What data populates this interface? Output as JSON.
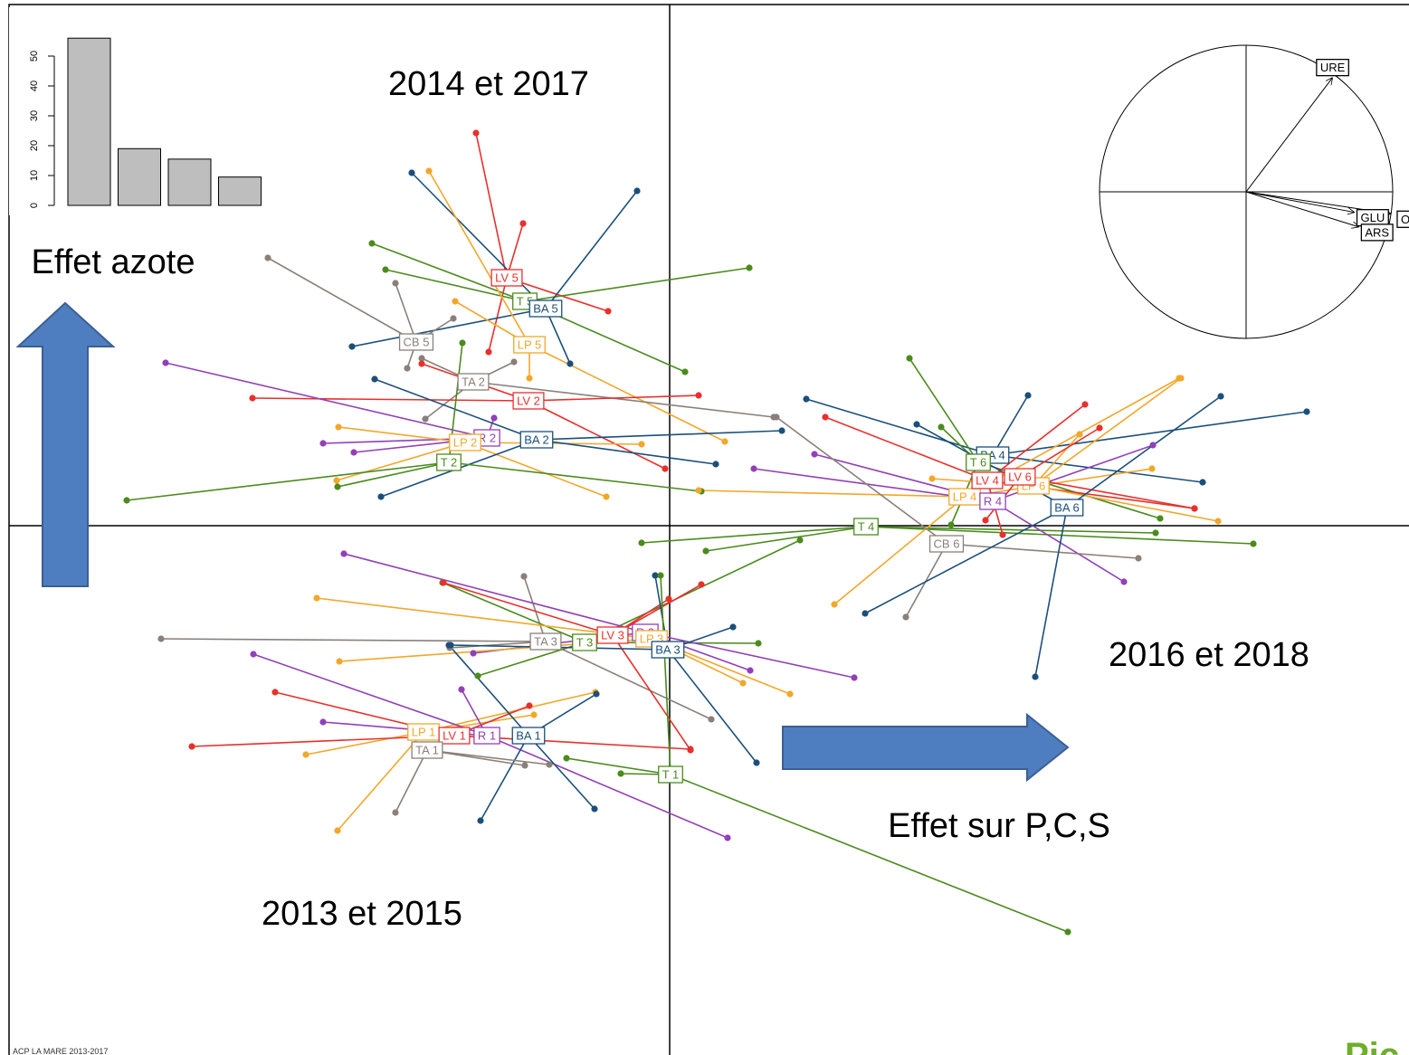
{
  "chart_data": [
    {
      "type": "bar",
      "categories": [
        null,
        null,
        null,
        null
      ],
      "values": [
        56,
        19,
        15.5,
        9.5
      ],
      "color": "#bebebe",
      "ylim": [
        0,
        56
      ],
      "yticks": [
        0,
        10,
        20,
        30,
        40,
        50
      ]
    },
    {
      "type": "class-scatter",
      "xlim": [
        -730,
        817
      ],
      "ylim": [
        -585,
        576
      ],
      "groups": [
        {
          "name": "LV 5",
          "color": "#e8302c",
          "center": [
            -180,
            274
          ],
          "x": [
            -214,
            -162,
            -68,
            -200
          ],
          "y": [
            434,
            334,
            237,
            192
          ]
        },
        {
          "name": "T 5",
          "color": "#4b8b1d",
          "center": [
            -160,
            248
          ],
          "x": [
            -329,
            88,
            17,
            -314
          ],
          "y": [
            312,
            285,
            170,
            283
          ]
        },
        {
          "name": "BA 5",
          "color": "#1b4f7a",
          "center": [
            -137,
            240
          ],
          "x": [
            -285,
            -36,
            -110,
            -351
          ],
          "y": [
            390,
            370,
            179,
            198
          ]
        },
        {
          "name": "LP 5",
          "color": "#f2a72a",
          "center": [
            -155,
            200
          ],
          "x": [
            -266,
            -237,
            -155,
            61
          ],
          "y": [
            392,
            248,
            163,
            93
          ]
        },
        {
          "name": "CB 5",
          "color": "#8a8079",
          "center": [
            -280,
            203
          ],
          "x": [
            -444,
            -303,
            -290,
            -239
          ],
          "y": [
            296,
            268,
            174,
            229
          ]
        },
        {
          "name": "TA 2",
          "color": "#8a8079",
          "center": [
            -217,
            159
          ],
          "x": [
            -274,
            -172,
            115,
            -270
          ],
          "y": [
            185,
            181,
            120,
            118
          ]
        },
        {
          "name": "LV 2",
          "color": "#e8302c",
          "center": [
            -156,
            138
          ],
          "x": [
            -461,
            32,
            -274,
            -5
          ],
          "y": [
            141,
            144,
            179,
            63
          ]
        },
        {
          "name": "R 2",
          "color": "#9240b8",
          "center": [
            -202,
            97
          ],
          "x": [
            -557,
            -383,
            -349,
            -194
          ],
          "y": [
            180,
            91,
            81,
            119
          ]
        },
        {
          "name": "LP 2",
          "color": "#f2a72a",
          "center": [
            -226,
            92
          ],
          "x": [
            -366,
            -368,
            -31,
            -70
          ],
          "y": [
            109,
            50,
            90,
            32
          ]
        },
        {
          "name": "BA 2",
          "color": "#1b4f7a",
          "center": [
            -147,
            95
          ],
          "x": [
            -326,
            -319,
            124,
            51
          ],
          "y": [
            162,
            32,
            105,
            68
          ]
        },
        {
          "name": "T 2",
          "color": "#4b8b1d",
          "center": [
            -244,
            70
          ],
          "x": [
            -600,
            -367,
            -229,
            35
          ],
          "y": [
            28,
            43,
            202,
            38
          ]
        },
        {
          "name": "TA 3",
          "color": "#8a8079",
          "center": [
            -137,
            -128
          ],
          "x": [
            -562,
            -161,
            46,
            -243
          ],
          "y": [
            -125,
            -56,
            -214,
            -135
          ]
        },
        {
          "name": "T 3",
          "color": "#4b8b1d",
          "center": [
            -94,
            -129
          ],
          "x": [
            -251,
            -212,
            144,
            98
          ],
          "y": [
            -63,
            -166,
            -16,
            -130
          ]
        },
        {
          "name": "LV 3",
          "color": "#e8302c",
          "center": [
            -63,
            -121
          ],
          "x": [
            -250,
            35,
            -1,
            23
          ],
          "y": [
            -63,
            -65,
            -81,
            -248
          ]
        },
        {
          "name": "R 3",
          "color": "#9240b8",
          "center": [
            -27,
            -118
          ],
          "x": [
            -360,
            204,
            89,
            -217
          ],
          "y": [
            -31,
            -168,
            -160,
            -141
          ]
        },
        {
          "name": "LP 3",
          "color": "#f2a72a",
          "center": [
            -20,
            -125
          ],
          "x": [
            -390,
            -365,
            133,
            81
          ],
          "y": [
            -80,
            -150,
            -186,
            -174
          ]
        },
        {
          "name": "BA 3",
          "color": "#1b4f7a",
          "center": [
            -2,
            -137
          ],
          "x": [
            -16,
            70,
            -242,
            96
          ],
          "y": [
            -55,
            -112,
            -132,
            -262
          ]
        },
        {
          "name": "LP 1",
          "color": "#f2a72a",
          "center": [
            -272,
            -228
          ],
          "x": [
            -402,
            -367,
            -82,
            -150
          ],
          "y": [
            -253,
            -337,
            -184,
            -209
          ]
        },
        {
          "name": "LV 1",
          "color": "#e8302c",
          "center": [
            -238,
            -232
          ],
          "x": [
            -528,
            -436,
            23,
            -155
          ],
          "y": [
            -244,
            -184,
            -247,
            -199
          ]
        },
        {
          "name": "R 1",
          "color": "#9240b8",
          "center": [
            -202,
            -232
          ],
          "x": [
            -460,
            -383,
            64,
            -230
          ],
          "y": [
            -142,
            -217,
            -345,
            -181
          ]
        },
        {
          "name": "BA 1",
          "color": "#1b4f7a",
          "center": [
            -156,
            -232
          ],
          "x": [
            -209,
            -83,
            -81,
            -244
          ],
          "y": [
            -326,
            -313,
            -186,
            -132
          ]
        },
        {
          "name": "TA 1",
          "color": "#8a8079",
          "center": [
            -268,
            -248
          ],
          "x": [
            -303,
            -160,
            -133
          ],
          "y": [
            -317,
            -265,
            -264
          ]
        },
        {
          "name": "T 1",
          "color": "#4b8b1d",
          "center": [
            1,
            -275
          ],
          "x": [
            440,
            -54,
            -114,
            -10
          ],
          "y": [
            -449,
            -274,
            -257,
            -55
          ]
        },
        {
          "name": "T 4",
          "color": "#4b8b1d",
          "center": [
            217,
            -1
          ],
          "x": [
            -31,
            40,
            645,
            537
          ],
          "y": [
            -19,
            -28,
            -20,
            -8
          ]
        },
        {
          "name": "BA 4",
          "color": "#1b4f7a",
          "center": [
            357,
            78
          ],
          "x": [
            151,
            396,
            589,
            704
          ],
          "y": [
            140,
            144,
            48,
            126
          ]
        },
        {
          "name": "LP 4",
          "color": "#f2a72a",
          "center": [
            326,
            32
          ],
          "x": [
            182,
            32,
            563,
            533
          ],
          "y": [
            -87,
            39,
            163,
            63
          ]
        },
        {
          "name": "R 4",
          "color": "#9240b8",
          "center": [
            357,
            27
          ],
          "x": [
            160,
            502,
            93,
            534
          ],
          "y": [
            79,
            -62,
            63,
            89
          ]
        },
        {
          "name": "CB 6",
          "color": "#8a8079",
          "center": [
            306,
            -20
          ],
          "x": [
            261,
            118,
            518
          ],
          "y": [
            -101,
            120,
            -36
          ]
        },
        {
          "name": "T 6",
          "color": "#4b8b1d",
          "center": [
            341,
            70
          ],
          "x": [
            265,
            300,
            311,
            542
          ],
          "y": [
            185,
            109,
            1,
            8
          ]
        },
        {
          "name": "LV 4",
          "color": "#e8302c",
          "center": [
            351,
            50
          ],
          "x": [
            172,
            459,
            580,
            368
          ],
          "y": [
            120,
            134,
            19,
            -10
          ]
        },
        {
          "name": "LP 6",
          "color": "#f2a72a",
          "center": [
            402,
            44
          ],
          "x": [
            565,
            453,
            606,
            290
          ],
          "y": [
            163,
            101,
            5,
            52
          ]
        },
        {
          "name": "LV 6",
          "color": "#e8302c",
          "center": [
            387,
            54
          ],
          "x": [
            349,
            475,
            580
          ],
          "y": [
            6,
            108,
            19
          ]
        },
        {
          "name": "BA 6",
          "color": "#1b4f7a",
          "center": [
            439,
            20
          ],
          "x": [
            609,
            404,
            216,
            273
          ],
          "y": [
            143,
            -167,
            -97,
            112
          ]
        }
      ]
    },
    {
      "type": "correlation-circle",
      "xlim": [
        -1,
        1
      ],
      "ylim": [
        -1,
        1
      ],
      "arrows": [
        {
          "name": "URE",
          "x": 0.59,
          "y": 0.78
        },
        {
          "name": "OS",
          "x": 0.99,
          "y": -0.15
        },
        {
          "name": "GLU",
          "x": 0.74,
          "y": -0.14
        },
        {
          "name": "ARS",
          "x": 0.77,
          "y": -0.24
        }
      ]
    }
  ],
  "annotations": [
    "2014 et 2017",
    "Effet azote",
    "2016 et 2018",
    "Effet sur P,C,S",
    "2013 et 2015"
  ],
  "footer": "ACP LA MARE 2013-2017",
  "logo": "Pic"
}
